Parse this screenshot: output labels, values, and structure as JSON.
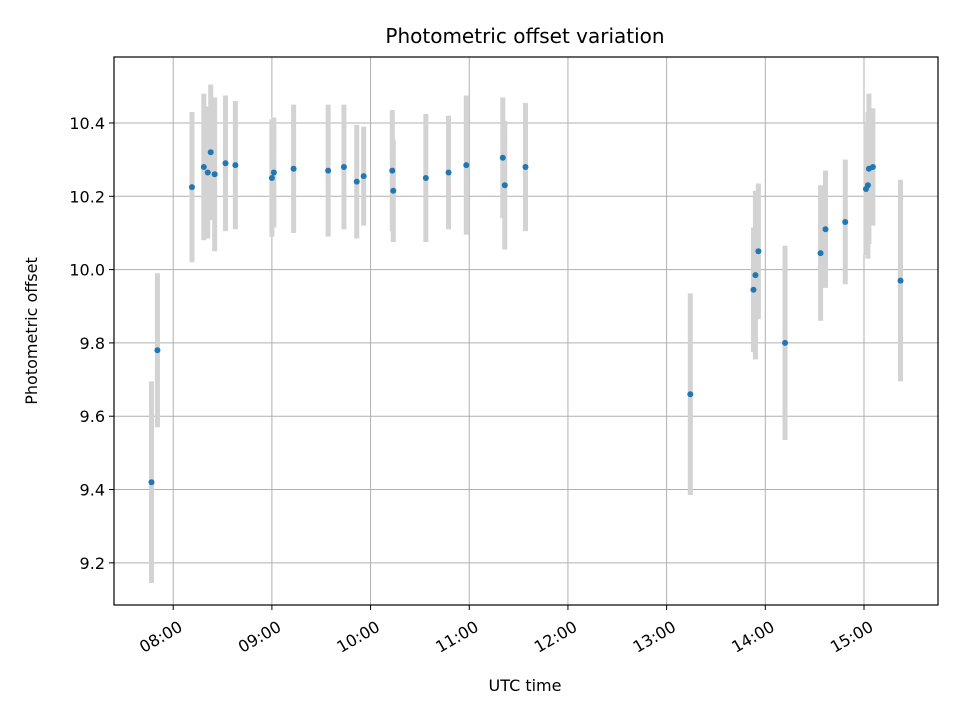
{
  "chart_data": {
    "type": "scatter",
    "title": "Photometric offset variation",
    "xlabel": "UTC time",
    "ylabel": "Photometric offset",
    "grid": true,
    "xlim": [
      7.4,
      15.75
    ],
    "ylim": [
      9.085,
      10.58
    ],
    "xticks": [
      {
        "value": 8,
        "label": "08:00"
      },
      {
        "value": 9,
        "label": "09:00"
      },
      {
        "value": 10,
        "label": "10:00"
      },
      {
        "value": 11,
        "label": "11:00"
      },
      {
        "value": 12,
        "label": "12:00"
      },
      {
        "value": 13,
        "label": "13:00"
      },
      {
        "value": 14,
        "label": "14:00"
      },
      {
        "value": 15,
        "label": "15:00"
      }
    ],
    "yticks": [
      {
        "value": 9.2,
        "label": "9.2"
      },
      {
        "value": 9.4,
        "label": "9.4"
      },
      {
        "value": 9.6,
        "label": "9.6"
      },
      {
        "value": 9.8,
        "label": "9.8"
      },
      {
        "value": 10.0,
        "label": "10.0"
      },
      {
        "value": 10.2,
        "label": "10.2"
      },
      {
        "value": 10.4,
        "label": "10.4"
      }
    ],
    "colors": {
      "point": "#1f77b4",
      "errorbar": "#d3d3d3",
      "grid": "#b0b0b0",
      "axes": "#000000"
    },
    "series": [
      {
        "name": "offset",
        "points": [
          {
            "x": 7.78,
            "y": 9.42,
            "err": 0.275
          },
          {
            "x": 7.84,
            "y": 9.78,
            "err": 0.21
          },
          {
            "x": 8.19,
            "y": 10.225,
            "err": 0.205
          },
          {
            "x": 8.31,
            "y": 10.28,
            "err": 0.2
          },
          {
            "x": 8.35,
            "y": 10.265,
            "err": 0.18
          },
          {
            "x": 8.38,
            "y": 10.32,
            "err": 0.185
          },
          {
            "x": 8.42,
            "y": 10.26,
            "err": 0.21
          },
          {
            "x": 8.53,
            "y": 10.29,
            "err": 0.185
          },
          {
            "x": 8.63,
            "y": 10.285,
            "err": 0.175
          },
          {
            "x": 9.0,
            "y": 10.25,
            "err": 0.16
          },
          {
            "x": 9.02,
            "y": 10.265,
            "err": 0.15
          },
          {
            "x": 9.22,
            "y": 10.275,
            "err": 0.175
          },
          {
            "x": 9.57,
            "y": 10.27,
            "err": 0.18
          },
          {
            "x": 9.73,
            "y": 10.28,
            "err": 0.17
          },
          {
            "x": 9.86,
            "y": 10.24,
            "err": 0.155
          },
          {
            "x": 9.93,
            "y": 10.255,
            "err": 0.135
          },
          {
            "x": 10.22,
            "y": 10.27,
            "err": 0.165
          },
          {
            "x": 10.23,
            "y": 10.215,
            "err": 0.14
          },
          {
            "x": 10.56,
            "y": 10.25,
            "err": 0.175
          },
          {
            "x": 10.79,
            "y": 10.265,
            "err": 0.155
          },
          {
            "x": 10.97,
            "y": 10.285,
            "err": 0.19
          },
          {
            "x": 11.34,
            "y": 10.305,
            "err": 0.165
          },
          {
            "x": 11.36,
            "y": 10.23,
            "err": 0.175
          },
          {
            "x": 11.57,
            "y": 10.28,
            "err": 0.175
          },
          {
            "x": 13.24,
            "y": 9.66,
            "err": 0.275
          },
          {
            "x": 13.88,
            "y": 9.945,
            "err": 0.17
          },
          {
            "x": 13.9,
            "y": 9.985,
            "err": 0.23
          },
          {
            "x": 13.93,
            "y": 10.05,
            "err": 0.185
          },
          {
            "x": 14.2,
            "y": 9.8,
            "err": 0.265
          },
          {
            "x": 14.56,
            "y": 10.045,
            "err": 0.185
          },
          {
            "x": 14.61,
            "y": 10.11,
            "err": 0.16
          },
          {
            "x": 14.81,
            "y": 10.13,
            "err": 0.17
          },
          {
            "x": 15.02,
            "y": 10.22,
            "err": 0.18
          },
          {
            "x": 15.04,
            "y": 10.23,
            "err": 0.2
          },
          {
            "x": 15.05,
            "y": 10.275,
            "err": 0.205
          },
          {
            "x": 15.09,
            "y": 10.28,
            "err": 0.16
          },
          {
            "x": 15.37,
            "y": 9.97,
            "err": 0.275
          }
        ]
      }
    ]
  }
}
